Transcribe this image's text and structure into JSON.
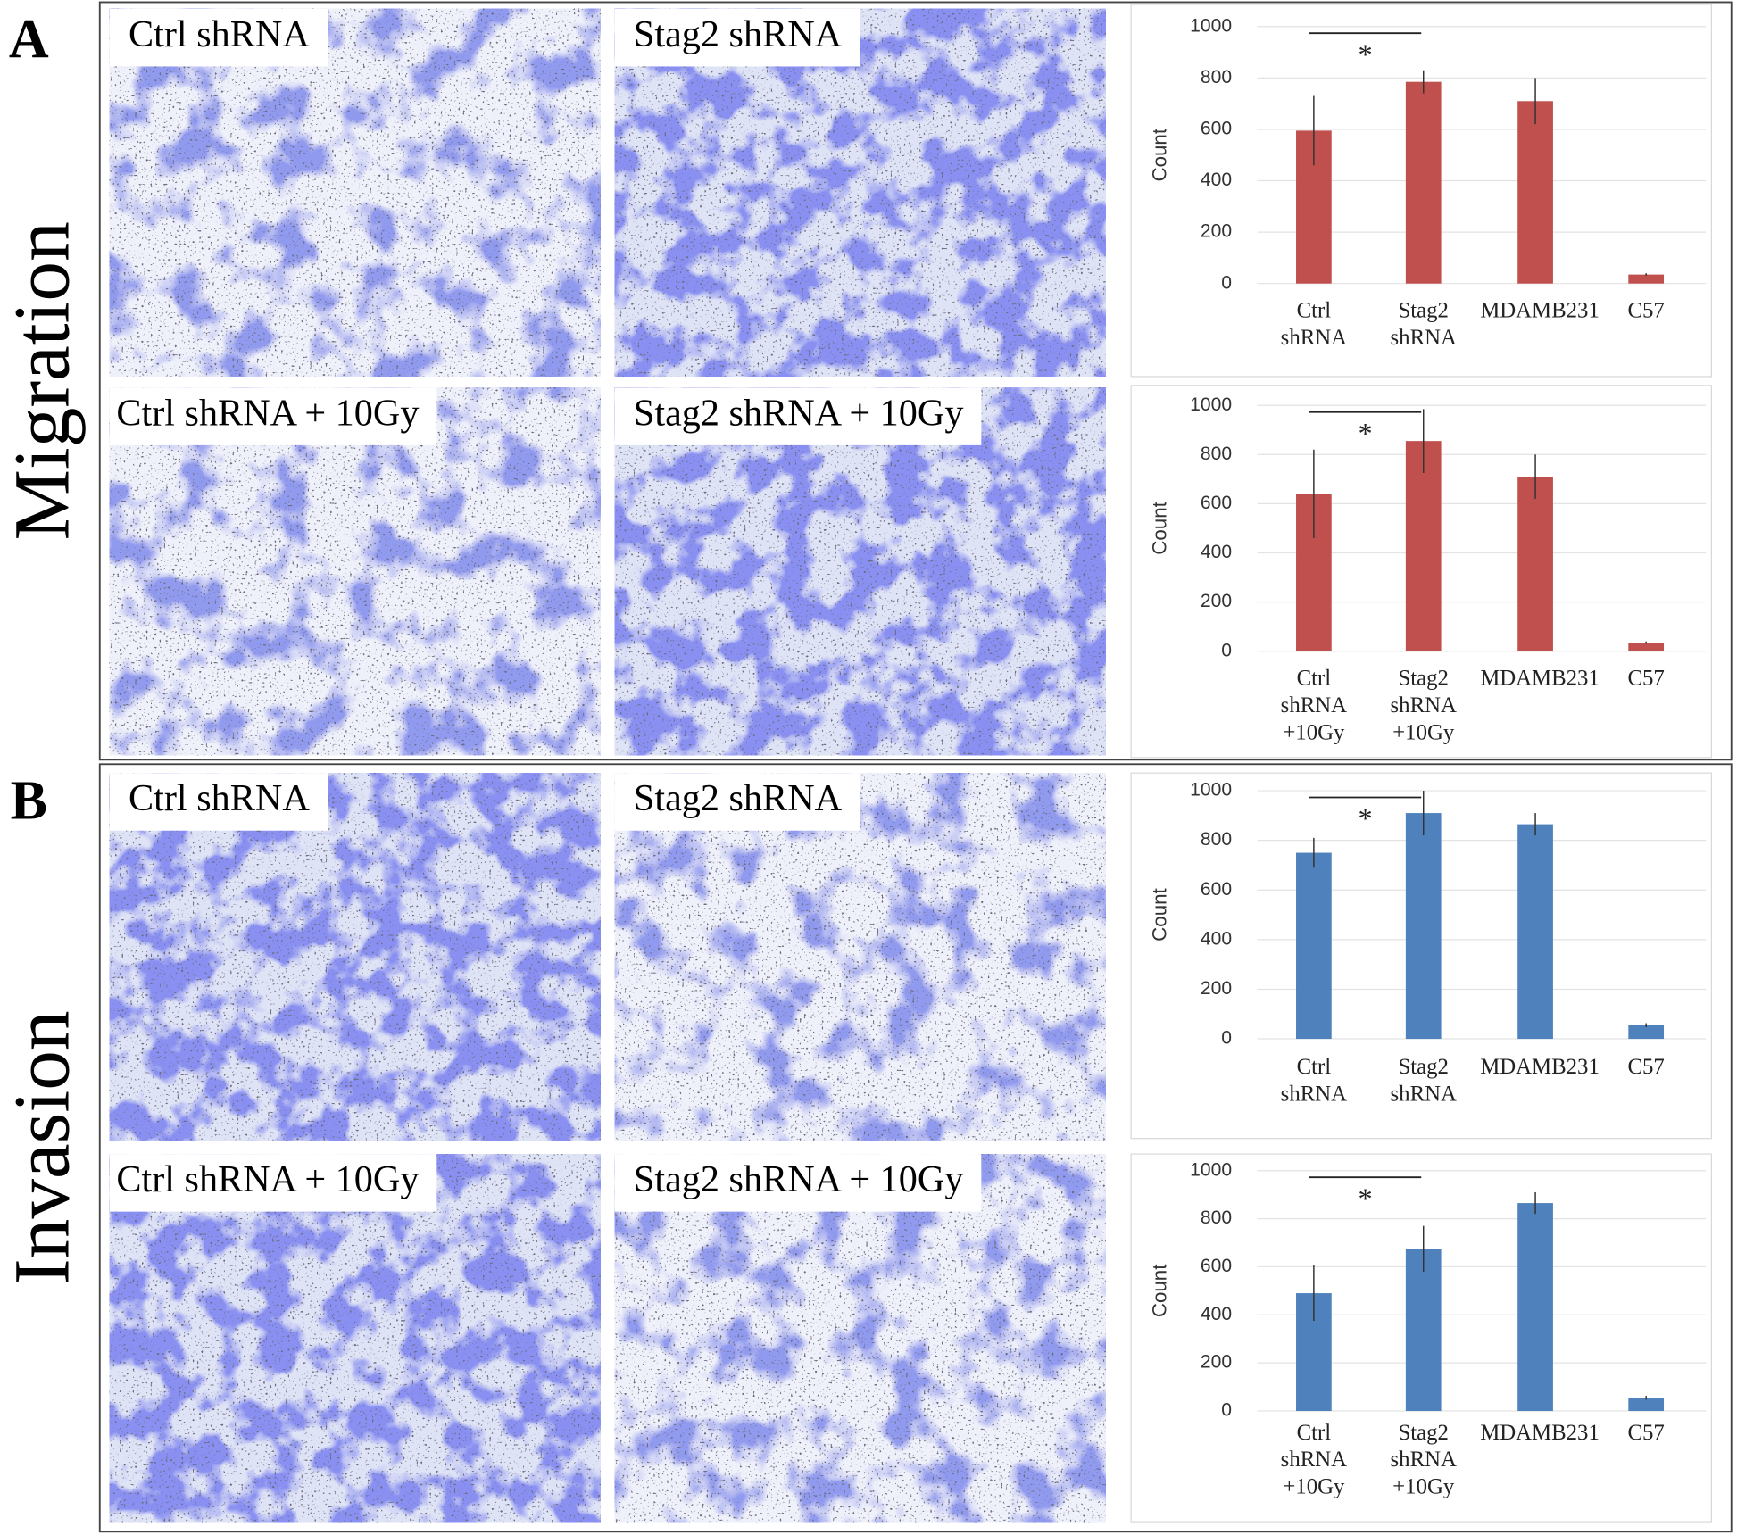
{
  "panels": [
    {
      "label": "A",
      "side_label": "Migration",
      "images": [
        "Ctrl shRNA",
        "Stag2 shRNA",
        "Ctrl shRNA + 10Gy",
        "Stag2 shRNA + 10Gy"
      ]
    },
    {
      "label": "B",
      "side_label": "Invasion",
      "images": [
        "Ctrl shRNA",
        "Stag2 shRNA",
        "Ctrl shRNA + 10Gy",
        "Stag2 shRNA + 10Gy"
      ]
    }
  ],
  "chart_data": [
    {
      "type": "bar",
      "ylabel": "Count",
      "categories": [
        [
          "Ctrl",
          "shRNA"
        ],
        [
          "Stag2",
          "shRNA"
        ],
        [
          "MDAMB231"
        ],
        [
          "C57"
        ]
      ],
      "values": [
        595,
        785,
        710,
        35
      ],
      "errors": [
        135,
        45,
        90,
        5
      ],
      "color": "#c0504d",
      "ylim": [
        0,
        1000
      ],
      "yticks": [
        0,
        200,
        400,
        600,
        800,
        1000
      ],
      "grid": true,
      "significance": {
        "categories": [
          0,
          1
        ],
        "label": "*"
      }
    },
    {
      "type": "bar",
      "ylabel": "Count",
      "categories": [
        [
          "Ctrl",
          "shRNA",
          "+10Gy"
        ],
        [
          "Stag2",
          "shRNA",
          "+10Gy"
        ],
        [
          "MDAMB231"
        ],
        [
          "C57"
        ]
      ],
      "values": [
        640,
        855,
        710,
        35
      ],
      "errors": [
        180,
        130,
        90,
        5
      ],
      "color": "#c0504d",
      "ylim": [
        0,
        1000
      ],
      "yticks": [
        0,
        200,
        400,
        600,
        800,
        1000
      ],
      "grid": true,
      "significance": {
        "categories": [
          0,
          1
        ],
        "label": "*"
      }
    },
    {
      "type": "bar",
      "ylabel": "Count",
      "categories": [
        [
          "Ctrl",
          "shRNA"
        ],
        [
          "Stag2",
          "shRNA"
        ],
        [
          "MDAMB231"
        ],
        [
          "C57"
        ]
      ],
      "values": [
        750,
        910,
        865,
        55
      ],
      "errors": [
        60,
        90,
        45,
        8
      ],
      "color": "#4f81bd",
      "ylim": [
        0,
        1000
      ],
      "yticks": [
        0,
        200,
        400,
        600,
        800,
        1000
      ],
      "grid": true,
      "significance": {
        "categories": [
          0,
          1
        ],
        "label": "*"
      }
    },
    {
      "type": "bar",
      "ylabel": "Count",
      "categories": [
        [
          "Ctrl",
          "shRNA",
          "+10Gy"
        ],
        [
          "Stag2",
          "shRNA",
          "+10Gy"
        ],
        [
          "MDAMB231"
        ],
        [
          "C57"
        ]
      ],
      "values": [
        490,
        675,
        865,
        55
      ],
      "errors": [
        115,
        95,
        45,
        8
      ],
      "color": "#4f81bd",
      "ylim": [
        0,
        1000
      ],
      "yticks": [
        0,
        200,
        400,
        600,
        800,
        1000
      ],
      "grid": true,
      "significance": {
        "categories": [
          0,
          1
        ],
        "label": "*"
      }
    }
  ]
}
